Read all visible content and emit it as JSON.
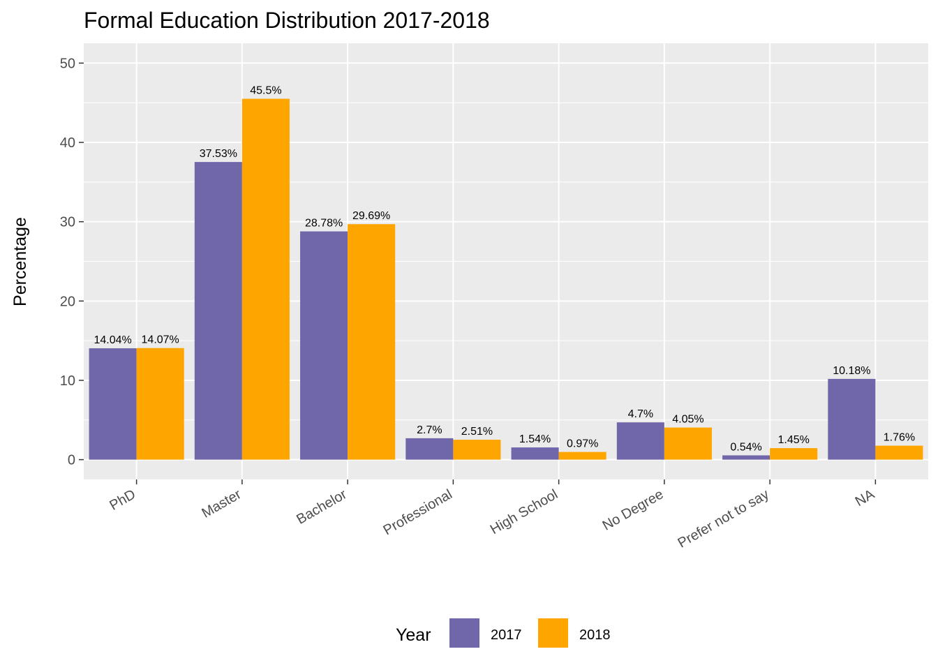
{
  "chart_data": {
    "type": "bar",
    "title": "Formal Education Distribution 2017-2018",
    "xlabel": "",
    "ylabel": "Percentage",
    "ylim": [
      -2.5,
      52.5
    ],
    "yticks": [
      0,
      10,
      20,
      30,
      40,
      50
    ],
    "grid": true,
    "legend_position": "bottom",
    "legend_title": "Year",
    "categories": [
      "PhD",
      "Master",
      "Bachelor",
      "Professional",
      "High School",
      "No Degree",
      "Prefer not to say",
      "NA"
    ],
    "series": [
      {
        "name": "2017",
        "color": "#7066aa",
        "values": [
          14.04,
          37.53,
          28.78,
          2.7,
          1.54,
          4.7,
          0.54,
          10.18
        ],
        "labels": [
          "14.04%",
          "37.53%",
          "28.78%",
          "2.7%",
          "1.54%",
          "4.7%",
          "0.54%",
          "10.18%"
        ]
      },
      {
        "name": "2018",
        "color": "#ffa500",
        "values": [
          14.07,
          45.5,
          29.69,
          2.51,
          0.97,
          4.05,
          1.45,
          1.76
        ],
        "labels": [
          "14.07%",
          "45.5%",
          "29.69%",
          "2.51%",
          "0.97%",
          "4.05%",
          "1.45%",
          "1.76%"
        ]
      }
    ]
  }
}
